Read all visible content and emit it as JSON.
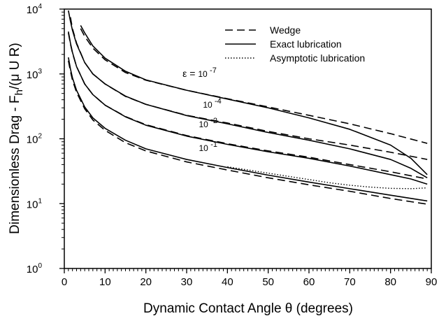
{
  "chart_data": {
    "type": "line",
    "title": "",
    "xlabel": "Dynamic Contact Angle θ (degrees)",
    "ylabel": "Dimensionless Drag - F_h/(μ U R)",
    "ylabel_parts": {
      "main": "Dimensionless Drag - F",
      "sub": "h",
      "tail": "/(μ U R)"
    },
    "xlim": [
      0,
      90
    ],
    "ylim": [
      1,
      10000
    ],
    "y_scale": "log",
    "grid": false,
    "legend_position": "top-right",
    "x_ticks": [
      "0",
      "10",
      "20",
      "30",
      "40",
      "50",
      "60",
      "70",
      "80",
      "90"
    ],
    "y_ticks": [
      {
        "base": "10",
        "exp": "0",
        "value": 1
      },
      {
        "base": "10",
        "exp": "1",
        "value": 10
      },
      {
        "base": "10",
        "exp": "2",
        "value": 100
      },
      {
        "base": "10",
        "exp": "3",
        "value": 1000
      },
      {
        "base": "10",
        "exp": "4",
        "value": 10000
      }
    ],
    "legend": [
      {
        "label": "Wedge",
        "style": "dashed"
      },
      {
        "label": "Exact lubrication",
        "style": "solid"
      },
      {
        "label": "Asymptotic lubrication",
        "style": "dotted"
      }
    ],
    "annotations": [
      {
        "prefix": "ε =",
        "base": "10",
        "exp": "-7",
        "x": 29,
        "y": 900
      },
      {
        "prefix": "",
        "base": "10",
        "exp": "-4",
        "x": 34,
        "y": 300
      },
      {
        "prefix": "",
        "base": "10",
        "exp": "-2",
        "x": 33,
        "y": 150
      },
      {
        "prefix": "",
        "base": "10",
        "exp": "-1",
        "x": 33,
        "y": 65
      }
    ],
    "series": [
      {
        "epsilon": "10^-7",
        "style": "dashed",
        "x": [
          4,
          5,
          7,
          10,
          15,
          20,
          30,
          40,
          50,
          60,
          70,
          80,
          89
        ],
        "y": [
          5000,
          3800,
          2500,
          1650,
          1050,
          800,
          560,
          415,
          310,
          230,
          170,
          120,
          85
        ]
      },
      {
        "epsilon": "10^-7",
        "style": "solid",
        "x": [
          4,
          5,
          7,
          10,
          15,
          20,
          30,
          40,
          50,
          60,
          70,
          80,
          85,
          89
        ],
        "y": [
          5600,
          4300,
          2700,
          1750,
          1100,
          810,
          560,
          410,
          300,
          210,
          140,
          80,
          50,
          28
        ]
      },
      {
        "epsilon": "10^-4",
        "style": "dashed",
        "x": [
          1.5,
          2,
          3,
          5,
          7,
          10,
          15,
          20,
          30,
          40,
          50,
          60,
          70,
          80,
          89
        ],
        "y": [
          7500,
          5000,
          3000,
          1500,
          1000,
          700,
          450,
          340,
          230,
          175,
          130,
          100,
          80,
          62,
          48
        ]
      },
      {
        "epsilon": "10^-4",
        "style": "solid",
        "x": [
          1,
          1.5,
          2,
          3,
          5,
          7,
          10,
          15,
          20,
          30,
          40,
          50,
          60,
          70,
          80,
          85,
          89
        ],
        "y": [
          9500,
          6500,
          4700,
          2900,
          1500,
          1000,
          700,
          455,
          340,
          228,
          170,
          125,
          95,
          70,
          48,
          35,
          25
        ]
      },
      {
        "epsilon": "10^-2",
        "style": "dashed",
        "x": [
          1,
          1.5,
          2,
          3,
          5,
          7,
          10,
          15,
          20,
          30,
          40,
          50,
          60,
          70,
          80,
          89
        ],
        "y": [
          4300,
          2900,
          2100,
          1300,
          700,
          480,
          330,
          220,
          165,
          112,
          84,
          65,
          52,
          40,
          31,
          24
        ]
      },
      {
        "epsilon": "10^-2",
        "style": "solid",
        "x": [
          1,
          1.5,
          2,
          3,
          5,
          7,
          10,
          15,
          20,
          30,
          40,
          50,
          60,
          70,
          80,
          85,
          89
        ],
        "y": [
          4500,
          3000,
          2150,
          1300,
          700,
          480,
          330,
          218,
          162,
          110,
          82,
          63,
          50,
          38,
          28,
          24,
          20
        ]
      },
      {
        "epsilon": "10^-1",
        "style": "dashed",
        "x": [
          1,
          1.5,
          2,
          3,
          5,
          7,
          10,
          15,
          20,
          30,
          40,
          50,
          60,
          70,
          80,
          89
        ],
        "y": [
          1600,
          1100,
          800,
          520,
          290,
          195,
          135,
          87,
          65,
          44,
          33,
          25,
          19.5,
          15.5,
          12,
          9.8
        ]
      },
      {
        "epsilon": "10^-1",
        "style": "solid",
        "x": [
          1,
          1.5,
          2,
          3,
          5,
          7,
          10,
          15,
          20,
          30,
          40,
          50,
          60,
          70,
          80,
          89
        ],
        "y": [
          1800,
          1200,
          870,
          560,
          310,
          210,
          145,
          95,
          70,
          48,
          36,
          27.5,
          21.5,
          17,
          13.5,
          11
        ]
      },
      {
        "epsilon": "10^-1",
        "style": "dotted",
        "x": [
          40,
          50,
          60,
          65,
          70,
          75,
          80,
          85,
          89
        ],
        "y": [
          37,
          29.5,
          23.5,
          21,
          19.2,
          18,
          17.2,
          17,
          17.5
        ]
      }
    ]
  }
}
